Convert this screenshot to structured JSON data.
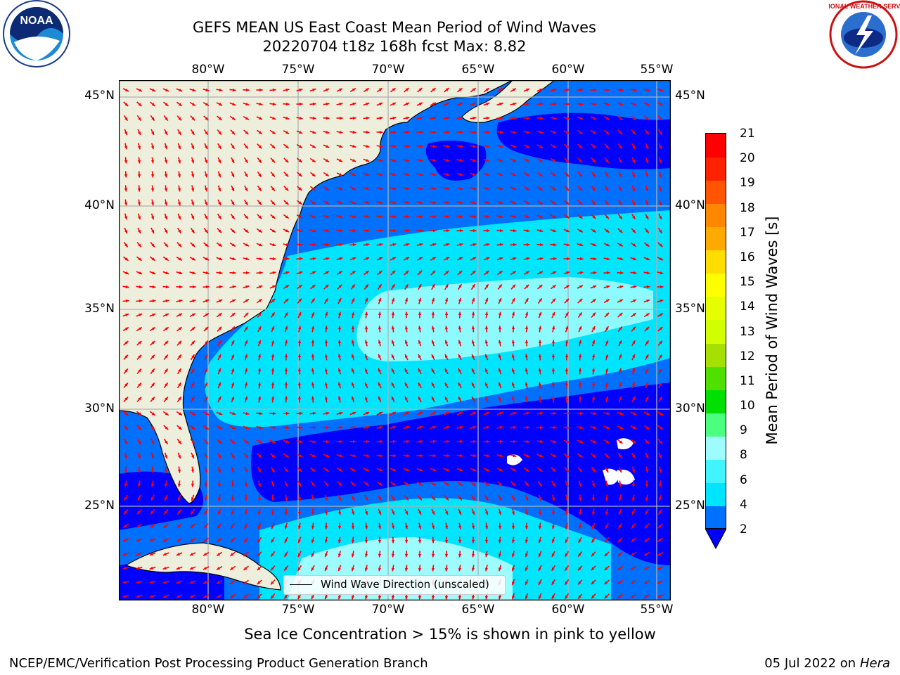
{
  "title_line1": "GEFS MEAN US East Coast Mean Period of Wind Waves",
  "title_line2": "20220704 t18z 168h fcst   Max: 8.82",
  "lon_labels": [
    "80°W",
    "75°W",
    "70°W",
    "65°W",
    "60°W",
    "55°W"
  ],
  "lat_labels": [
    "45°N",
    "40°N",
    "35°N",
    "30°N",
    "25°N"
  ],
  "colorbar": {
    "label": "Mean Period of Wind Waves [s]",
    "ticks": [
      "21",
      "20",
      "19",
      "18",
      "17",
      "16",
      "15",
      "14",
      "13",
      "12",
      "11",
      "10",
      "9",
      "8",
      "6",
      "4",
      "2"
    ],
    "colors": [
      "#0070ff",
      "#00e5ff",
      "#40f5ff",
      "#9cfcff",
      "#4dff7f",
      "#00e000",
      "#50e000",
      "#a5e000",
      "#d2ff00",
      "#e6ff00",
      "#ffff00",
      "#ffdd00",
      "#ffaa00",
      "#ff8800",
      "#ff5500",
      "#ff2200",
      "#ff0000"
    ],
    "extend_color": "#0000ff"
  },
  "legend_text": "Wind Wave Direction (unscaled)",
  "subtitle": "Sea Ice Concentration > 15% is shown in pink to yellow",
  "footer_left": "NCEP/EMC/Verification Post Processing Product Generation Branch",
  "footer_date": "05 Jul 2022 on ",
  "footer_host": "Hera",
  "logos": {
    "left": "NOAA",
    "right": "NATIONAL WEATHER SERVICE"
  },
  "colors": {
    "land": "#eeeedd",
    "arrow": "#ff0000",
    "grid": "#b0b0b0",
    "deep_blue": "#0000ff",
    "mid_blue": "#0070ff",
    "cyan": "#00e5ff",
    "light_cyan": "#9cfcff"
  }
}
